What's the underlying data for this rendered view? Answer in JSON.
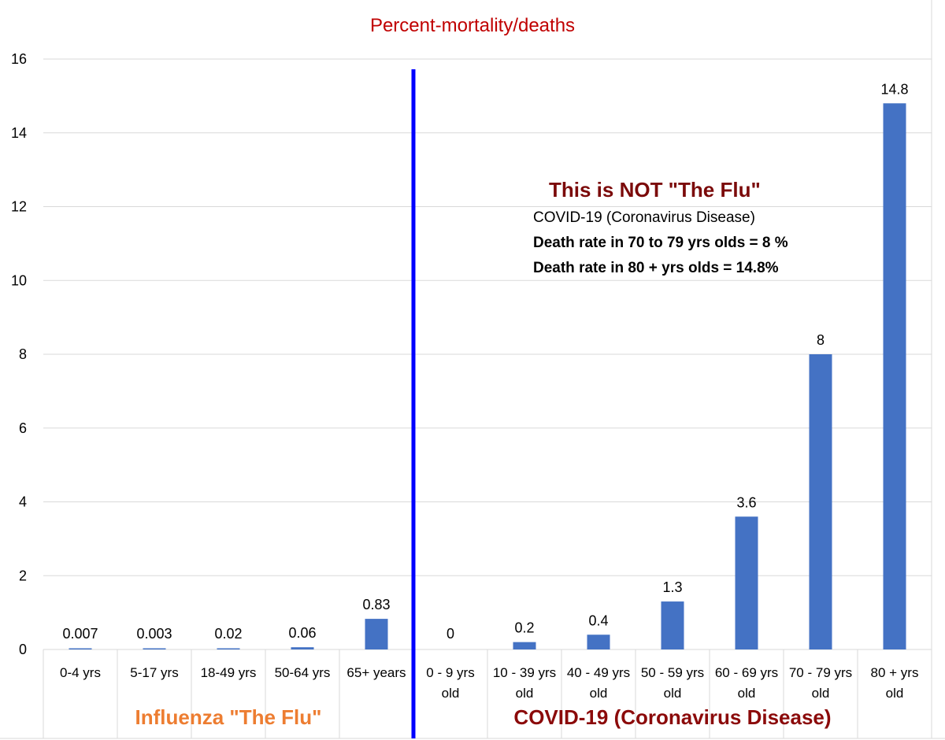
{
  "chart_data": {
    "type": "bar",
    "title": "Percent-mortality/deaths",
    "xlabel": "",
    "ylabel": "",
    "ylim": [
      0,
      16
    ],
    "yticks": [
      0,
      2,
      4,
      6,
      8,
      10,
      12,
      14,
      16
    ],
    "grid": true,
    "legend": "none",
    "categories": [
      [
        "0-4 yrs"
      ],
      [
        "5-17 yrs"
      ],
      [
        "18-49 yrs"
      ],
      [
        "50-64 yrs"
      ],
      [
        "65+ years"
      ],
      [
        "0 - 9 yrs",
        "old"
      ],
      [
        "10 - 39 yrs",
        "old"
      ],
      [
        "40 - 49 yrs",
        "old"
      ],
      [
        "50 - 59 yrs",
        "old"
      ],
      [
        "60 - 69 yrs",
        "old"
      ],
      [
        "70 - 79 yrs",
        "old"
      ],
      [
        "80 + yrs",
        "old"
      ]
    ],
    "values": [
      0.007,
      0.003,
      0.02,
      0.06,
      0.83,
      0,
      0.2,
      0.4,
      1.3,
      3.6,
      8,
      14.8
    ],
    "data_labels": [
      "0.007",
      "0.003",
      "0.02",
      "0.06",
      "0.83",
      "0",
      "0.2",
      "0.4",
      "1.3",
      "3.6",
      "8",
      "14.8"
    ],
    "groups": [
      {
        "label": "Influenza \"The Flu\"",
        "color": "#ed7d31",
        "start": 0,
        "end": 4
      },
      {
        "label": "COVID-19 (Coronavirus Disease)",
        "color": "#8b0a0a",
        "start": 5,
        "end": 11
      }
    ],
    "divider_after_index": 4,
    "divider_color": "#0000ff",
    "bar_color": "#4472c4",
    "title_color": "#c00000",
    "annotation": {
      "heading": "This is NOT \"The Flu\"",
      "heading_color": "#7b0a0a",
      "lines": [
        "COVID-19 (Coronavirus Disease)",
        "Death rate in 70 to 79 yrs olds = 8 %",
        "Death rate in 80 + yrs olds = 14.8%"
      ]
    }
  }
}
